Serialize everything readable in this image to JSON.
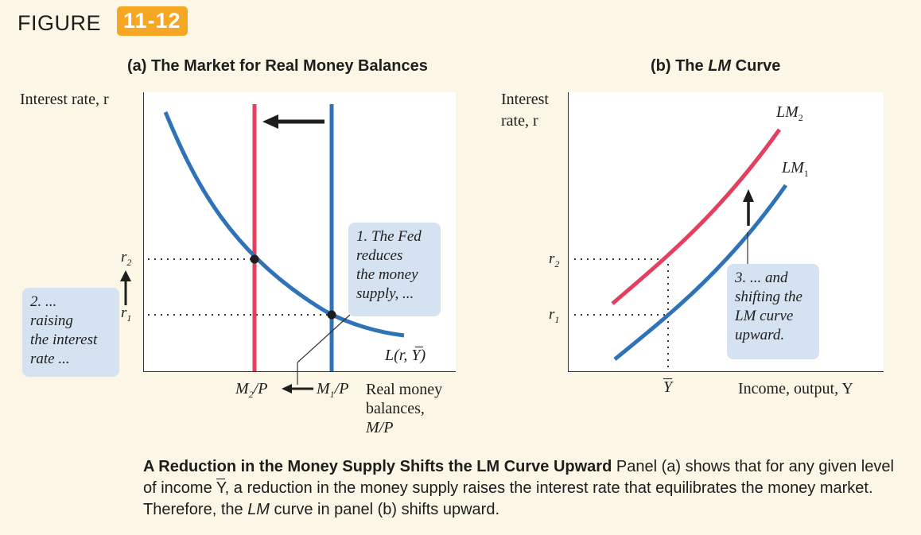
{
  "figure": {
    "word": "FIGURE",
    "number": "11-12"
  },
  "panel_a": {
    "title": "(a) The Market for Real Money Balances",
    "y_axis_label": "Interest rate, r",
    "r2_label": "r",
    "r2_sub": "2",
    "r1_label": "r",
    "r1_sub": "1",
    "m2_label": "M",
    "m2_sub": "2",
    "m2_tail": "/P",
    "m1_label": "M",
    "m1_sub": "1",
    "m1_tail": "/P",
    "x_axis_label_1": "Real money",
    "x_axis_label_2": "balances,",
    "x_axis_label_3": "M/P",
    "demand_label": "L(r, Y)",
    "callout_fed": [
      "1. The Fed",
      "reduces",
      "the money",
      "supply, ..."
    ],
    "callout_raising": [
      "2. ...",
      "raising",
      "the interest",
      "rate ..."
    ],
    "colors": {
      "new_supply": "#e2405e",
      "old_supply": "#2f72b8",
      "demand": "#2f72b8"
    }
  },
  "panel_b": {
    "title_prefix": "(b) The ",
    "title_lm": "LM",
    "title_suffix": " Curve",
    "y_axis_label_1": "Interest",
    "y_axis_label_2": "rate, r",
    "r2_label": "r",
    "r2_sub": "2",
    "r1_label": "r",
    "r1_sub": "1",
    "ybar_label": "Y",
    "x_axis_label": "Income, output, Y",
    "lm2_label": "LM",
    "lm2_sub": "2",
    "lm1_label": "LM",
    "lm1_sub": "1",
    "callout_shift": [
      "3. ... and",
      "shifting the",
      "LM curve",
      "upward."
    ],
    "colors": {
      "lm2": "#e2405e",
      "lm1": "#2f72b8"
    }
  },
  "caption": {
    "bold": "A Reduction in the Money Supply Shifts the LM Curve Upward",
    "text1": " Panel (a) shows that for any given level of income ",
    "ybar": "Y",
    "text2": ", a reduction in the money supply raises the interest rate that equilibrates the money market. Therefore, the ",
    "lm": "LM",
    "text3": " curve in panel (b) shifts upward."
  }
}
